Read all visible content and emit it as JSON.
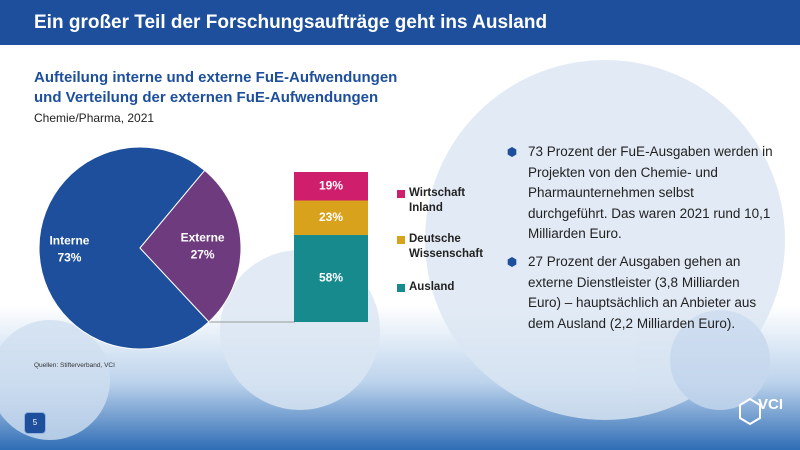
{
  "header": {
    "title": "Ein großer Teil der Forschungsaufträge geht ins Ausland"
  },
  "chart_data": [
    {
      "type": "pie",
      "title": [
        "Aufteilung interne und externe FuE-Aufwendungen",
        "und Verteilung der externen FuE-Aufwendungen"
      ],
      "subtitle": "Chemie/Pharma, 2021",
      "categories": [
        "Interne",
        "Externe"
      ],
      "values": [
        73,
        27
      ],
      "value_labels": [
        "73%",
        "27%"
      ],
      "colors": [
        "#1d4f9c",
        "#6e3b7e"
      ]
    },
    {
      "type": "stacked-bar",
      "series": [
        {
          "name": "Wirtschaft Inland",
          "color": "#cf1f6c",
          "values": [
            19
          ],
          "value_labels": [
            "19%"
          ]
        },
        {
          "name": "Deutsche Wissenschaft",
          "color": "#d8a21c",
          "values": [
            23
          ],
          "value_labels": [
            "23%"
          ]
        },
        {
          "name": "Ausland",
          "color": "#168a8c",
          "values": [
            58
          ],
          "value_labels": [
            "58%"
          ]
        }
      ]
    }
  ],
  "bullets": [
    "73 Prozent der FuE-Ausgaben werden in Projekten von den Chemie- und Pharmaunternehmen selbst durchgeführt. Das waren 2021 rund 10,1 Milliarden Euro.",
    "27 Prozent der Ausgaben gehen an externe Dienstleister (3,8 Milliarden Euro) – hauptsächlich an Anbieter aus dem Ausland (2,2 Milliarden Euro)."
  ],
  "source": "Quellen: Stifterverband, VCI",
  "page_number": "5",
  "logo": "VCI"
}
